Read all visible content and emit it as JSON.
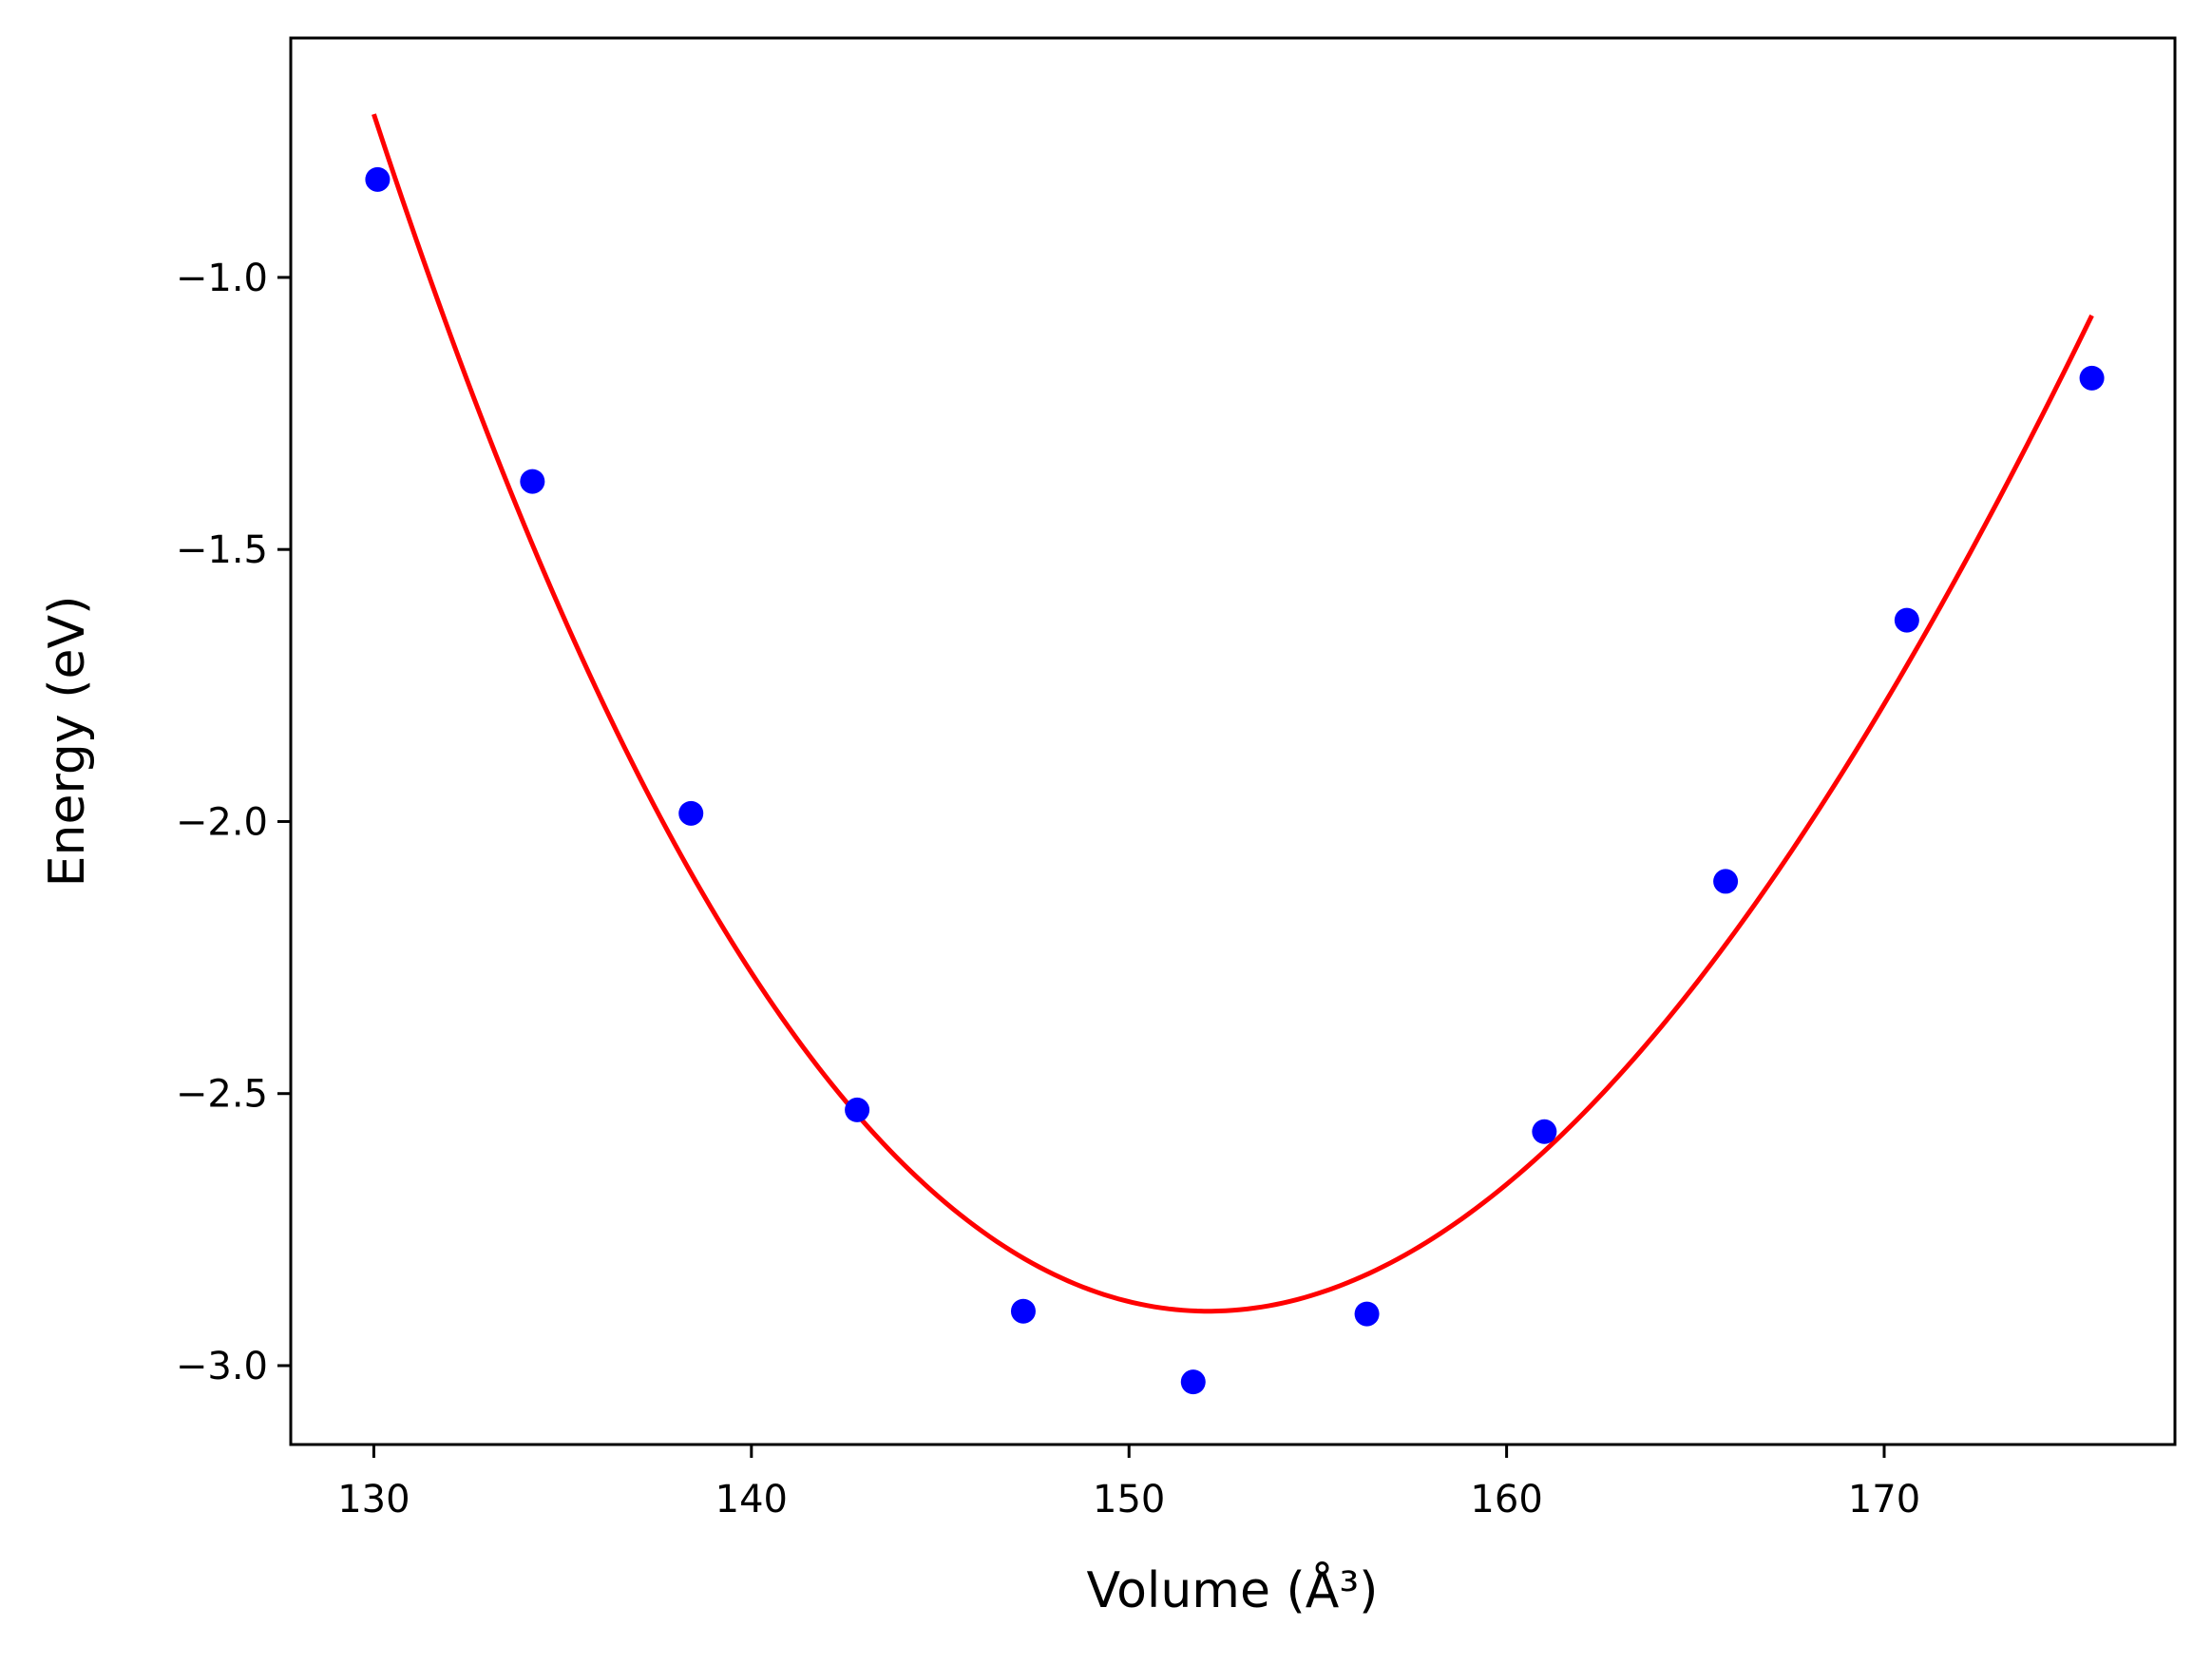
{
  "chart_data": {
    "type": "scatter",
    "title": "",
    "xlabel": "Volume (Å³)",
    "ylabel": "Energy (eV)",
    "xlim": [
      127.8,
      177.7
    ],
    "ylim": [
      -3.145,
      -0.56
    ],
    "xticks": [
      130,
      140,
      150,
      160,
      170
    ],
    "xtick_labels": [
      "130",
      "140",
      "150",
      "160",
      "170"
    ],
    "yticks": [
      -3.0,
      -2.5,
      -2.0,
      -1.5,
      -1.0
    ],
    "ytick_labels": [
      "−3.0",
      "−2.5",
      "−2.0",
      "−1.5",
      "−1.0"
    ],
    "grid": false,
    "legend": "none",
    "series": [
      {
        "kind": "scatter",
        "color": "#0000ff",
        "x": [
          130.1,
          134.2,
          138.4,
          142.8,
          147.2,
          151.7,
          156.3,
          161.0,
          165.8,
          170.6,
          175.5
        ],
        "y": [
          -0.82,
          -1.375,
          -1.985,
          -2.53,
          -2.9,
          -3.03,
          -2.905,
          -2.57,
          -2.11,
          -1.63,
          -1.185
        ]
      },
      {
        "kind": "line",
        "color": "#ff0000",
        "x_range": [
          130.0,
          175.5
        ],
        "y_at_start": -0.7,
        "min_x": 152.1,
        "min_y": -2.9,
        "y_at_end": -1.07
      }
    ]
  }
}
